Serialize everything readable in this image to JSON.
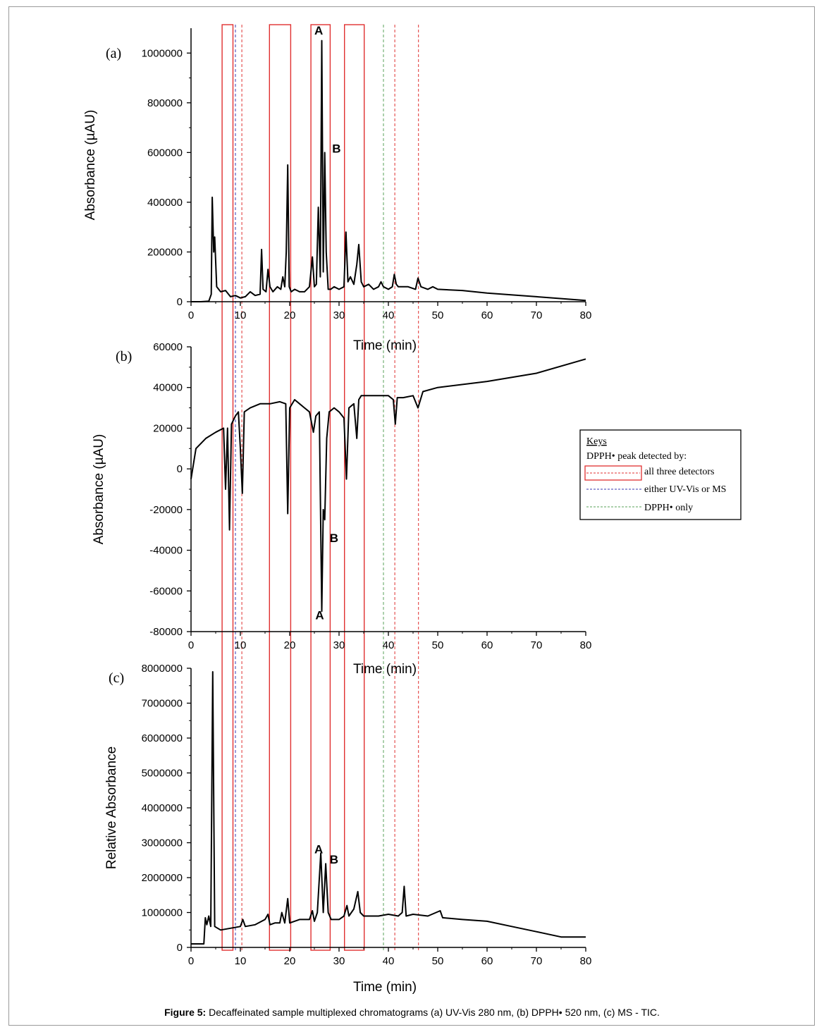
{
  "caption": {
    "prefix": "Figure 5:",
    "text": "Decaffeinated sample multiplexed chromatograms (a) UV-Vis 280 nm, (b) DPPH• 520 nm, (c) MS - TIC."
  },
  "colors": {
    "trace": "#000000",
    "box": "#e03030",
    "red_dash": "#e03030",
    "blue_dash": "#3a3ab0",
    "green_dash": "#5aa05a"
  },
  "markers": {
    "red_boxes": [
      [
        6.3,
        8.5
      ],
      [
        15.9,
        20.2
      ],
      [
        24.3,
        28.2
      ],
      [
        31.1,
        35.1
      ]
    ],
    "blue_dashed": [
      9.0
    ],
    "red_dashed": [
      10.3,
      41.3,
      46.1
    ],
    "green_dashed": [
      39.0
    ]
  },
  "key": {
    "title": "Keys",
    "subtitle": "DPPH• peak detected by:",
    "items": [
      {
        "label": "all three detectors",
        "style": "box"
      },
      {
        "label": "either UV-Vis or MS",
        "style": "blue"
      },
      {
        "label": "DPPH• only",
        "style": "green"
      }
    ]
  },
  "chart_data": [
    {
      "type": "line",
      "panel_label": "(a)",
      "xlabel": "Time (min)",
      "ylabel": "Absorbance (µAU)",
      "xlim": [
        0,
        80
      ],
      "ylim": [
        0,
        1100000
      ],
      "xticks": [
        0,
        10,
        20,
        30,
        40,
        50,
        60,
        70,
        80
      ],
      "yticks": [
        0,
        200000,
        400000,
        600000,
        800000,
        1000000
      ],
      "peak_labels": [
        {
          "text": "A",
          "x": 25.0,
          "y": 1075000
        },
        {
          "text": "B",
          "x": 28.6,
          "y": 600000
        }
      ],
      "x": [
        0,
        2,
        3.6,
        4.1,
        4.3,
        4.6,
        4.8,
        5.2,
        6,
        7,
        8,
        9,
        10,
        11,
        12,
        13,
        14,
        14.3,
        14.6,
        15.2,
        15.6,
        16,
        16.6,
        17.5,
        18.2,
        18.6,
        19,
        19.3,
        19.6,
        19.9,
        20.3,
        21,
        22,
        23,
        24,
        24.6,
        25,
        25.4,
        25.8,
        26.2,
        26.5,
        26.8,
        27.1,
        27.4,
        27.8,
        28.3,
        29,
        30,
        31,
        31.4,
        31.8,
        32.3,
        33,
        33.6,
        34,
        34.5,
        35,
        36,
        37,
        38,
        38.5,
        39,
        40,
        40.8,
        41.2,
        41.6,
        42,
        44,
        45.5,
        46,
        46.6,
        48,
        49,
        50,
        55,
        60,
        70,
        80
      ],
      "y": [
        0,
        0,
        2000,
        30000,
        420000,
        200000,
        260000,
        60000,
        40000,
        45000,
        20000,
        25000,
        15000,
        20000,
        40000,
        25000,
        30000,
        210000,
        50000,
        40000,
        130000,
        60000,
        40000,
        60000,
        50000,
        100000,
        60000,
        200000,
        550000,
        60000,
        40000,
        50000,
        40000,
        40000,
        60000,
        180000,
        60000,
        70000,
        380000,
        100000,
        1050000,
        120000,
        600000,
        200000,
        50000,
        50000,
        60000,
        50000,
        60000,
        280000,
        80000,
        100000,
        70000,
        150000,
        230000,
        80000,
        60000,
        70000,
        50000,
        60000,
        80000,
        60000,
        50000,
        60000,
        110000,
        70000,
        60000,
        60000,
        50000,
        95000,
        60000,
        50000,
        60000,
        50000,
        45000,
        35000,
        20000,
        5000
      ]
    },
    {
      "type": "line",
      "panel_label": "(b)",
      "xlabel": "Time (min)",
      "ylabel": "Absorbance (µAU)",
      "xlim": [
        0,
        80
      ],
      "ylim": [
        -80000,
        60000
      ],
      "xticks": [
        0,
        10,
        20,
        30,
        40,
        50,
        60,
        70,
        80
      ],
      "yticks": [
        -80000,
        -60000,
        -40000,
        -20000,
        0,
        20000,
        40000,
        60000
      ],
      "peak_labels": [
        {
          "text": "B",
          "x": 28.1,
          "y": -36000
        },
        {
          "text": "A",
          "x": 25.2,
          "y": -74000
        }
      ],
      "x": [
        0,
        1,
        3,
        5,
        6.6,
        7,
        7.4,
        7.8,
        8.2,
        9,
        9.6,
        10,
        10.4,
        10.8,
        12,
        14,
        16,
        18,
        19.2,
        19.6,
        20,
        21,
        22,
        23,
        24,
        24.8,
        25.3,
        26,
        26.5,
        26.8,
        27.1,
        27.5,
        28,
        29,
        30,
        31,
        31.5,
        32,
        33,
        33.6,
        34,
        34.5,
        35,
        37,
        40,
        41,
        41.4,
        41.8,
        43,
        45,
        46,
        47,
        50,
        60,
        70,
        80
      ],
      "y": [
        -5000,
        10000,
        15000,
        18000,
        20000,
        -10000,
        20000,
        -30000,
        22000,
        26000,
        28000,
        10000,
        -12000,
        28000,
        30000,
        32000,
        32000,
        33000,
        32000,
        -22000,
        30000,
        34000,
        32000,
        30000,
        28000,
        18000,
        26000,
        28000,
        -70000,
        -20000,
        -25000,
        15000,
        28000,
        30000,
        28000,
        25000,
        -5000,
        30000,
        32000,
        15000,
        34000,
        36000,
        36000,
        36000,
        36000,
        34000,
        22000,
        35000,
        35000,
        36000,
        30000,
        38000,
        40000,
        43000,
        47000,
        54000
      ]
    },
    {
      "type": "line",
      "panel_label": "(c)",
      "xlabel": "Time (min)",
      "ylabel": "Relative Absorbance",
      "xlim": [
        0,
        80
      ],
      "ylim": [
        0,
        8000000
      ],
      "xticks": [
        0,
        10,
        20,
        30,
        40,
        50,
        60,
        70,
        80
      ],
      "yticks": [
        0,
        1000000,
        2000000,
        3000000,
        4000000,
        5000000,
        6000000,
        7000000,
        8000000
      ],
      "peak_labels": [
        {
          "text": "A",
          "x": 25.0,
          "y": 2700000
        },
        {
          "text": "B",
          "x": 28.1,
          "y": 2400000
        }
      ],
      "x": [
        0,
        2.6,
        2.9,
        3.2,
        3.6,
        4.0,
        4.4,
        4.8,
        6,
        8,
        10,
        10.5,
        11,
        13,
        15,
        15.6,
        16,
        17,
        18,
        18.4,
        19,
        19.6,
        20,
        22,
        24,
        24.6,
        25,
        25.6,
        26.3,
        26.8,
        27.3,
        27.8,
        28.4,
        30,
        31,
        31.6,
        32,
        33,
        33.8,
        34.3,
        35,
        38,
        40,
        42,
        42.8,
        43.2,
        43.6,
        45,
        48,
        50.5,
        51,
        55,
        60,
        65,
        70,
        75,
        80
      ],
      "y": [
        100000,
        100000,
        850000,
        650000,
        900000,
        600000,
        7900000,
        600000,
        500000,
        550000,
        600000,
        800000,
        600000,
        650000,
        800000,
        950000,
        650000,
        700000,
        700000,
        1000000,
        700000,
        1400000,
        700000,
        800000,
        800000,
        1050000,
        750000,
        1000000,
        2700000,
        1000000,
        2400000,
        1000000,
        800000,
        800000,
        900000,
        1200000,
        900000,
        1100000,
        1600000,
        1000000,
        900000,
        900000,
        950000,
        900000,
        1000000,
        1750000,
        900000,
        950000,
        900000,
        1050000,
        850000,
        800000,
        750000,
        600000,
        450000,
        300000,
        300000
      ]
    }
  ]
}
